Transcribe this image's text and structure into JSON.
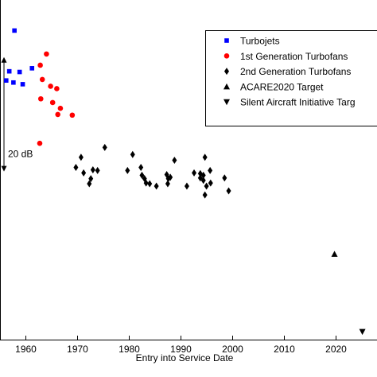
{
  "chart_data": {
    "type": "scatter",
    "title": "",
    "xlabel": "Entry into Service Date",
    "ylabel": "",
    "xlim": [
      1955,
      2027
    ],
    "ylim": [
      0,
      100
    ],
    "grid": false,
    "legend_position": "top-right",
    "xticks": [
      1960,
      1970,
      1980,
      1990,
      2000,
      2010,
      2020
    ],
    "xtick_labels": [
      "1960",
      "1970",
      "1980",
      "1990",
      "2000",
      "2010",
      "2020"
    ],
    "annotation": {
      "label": "20 dB",
      "from_y": 83.2,
      "to_y": 49.5
    },
    "series": [
      {
        "name": "Turbojets",
        "marker": "square",
        "color": "#0000ff",
        "points": [
          [
            1957.8,
            91.0
          ],
          [
            1956.2,
            76.3
          ],
          [
            1956.8,
            79.0
          ],
          [
            1957.6,
            75.7
          ],
          [
            1958.8,
            78.8
          ],
          [
            1959.4,
            75.2
          ],
          [
            1961.2,
            79.9
          ]
        ]
      },
      {
        "name": "1st Generation Turbofans",
        "marker": "circle",
        "color": "#ff0000",
        "points": [
          [
            1962.8,
            80.8
          ],
          [
            1964.0,
            84.1
          ],
          [
            1963.2,
            76.6
          ],
          [
            1964.8,
            74.6
          ],
          [
            1966.0,
            73.9
          ],
          [
            1962.9,
            70.9
          ],
          [
            1965.2,
            69.8
          ],
          [
            1966.7,
            68.1
          ],
          [
            1966.2,
            66.3
          ],
          [
            1969.0,
            66.1
          ],
          [
            1962.7,
            57.8
          ]
        ]
      },
      {
        "name": "2nd Generation Turbofans",
        "marker": "diamond",
        "color": "#000000",
        "points": [
          [
            1970.7,
            53.7
          ],
          [
            1975.3,
            56.6
          ],
          [
            1969.7,
            50.7
          ],
          [
            1971.2,
            49.1
          ],
          [
            1973.0,
            50.0
          ],
          [
            1973.9,
            49.8
          ],
          [
            1972.6,
            47.4
          ],
          [
            1972.3,
            45.9
          ],
          [
            1980.7,
            54.5
          ],
          [
            1979.7,
            49.8
          ],
          [
            1982.3,
            50.7
          ],
          [
            1982.5,
            48.4
          ],
          [
            1983.0,
            47.4
          ],
          [
            1983.3,
            46.1
          ],
          [
            1984.0,
            45.9
          ],
          [
            1985.3,
            45.2
          ],
          [
            1988.8,
            52.8
          ],
          [
            1987.3,
            48.6
          ],
          [
            1987.6,
            47.4
          ],
          [
            1988.0,
            47.8
          ],
          [
            1987.5,
            45.9
          ],
          [
            1994.7,
            53.7
          ],
          [
            1992.6,
            49.1
          ],
          [
            1993.8,
            48.9
          ],
          [
            1994.4,
            48.4
          ],
          [
            1995.7,
            49.8
          ],
          [
            1993.8,
            47.6
          ],
          [
            1994.4,
            46.9
          ],
          [
            1995.8,
            46.1
          ],
          [
            1991.2,
            45.2
          ],
          [
            1995.0,
            45.2
          ],
          [
            1998.5,
            47.6
          ],
          [
            1999.3,
            43.8
          ],
          [
            1994.7,
            42.6
          ]
        ]
      },
      {
        "name": "ACARE2020 Target",
        "marker": "triangle-up",
        "color": "#000000",
        "points": [
          [
            2019.8,
            25.2
          ]
        ]
      },
      {
        "name": "Silent Aircraft Initiative Targ",
        "marker": "triangle-down",
        "color": "#000000",
        "points": [
          [
            2025.2,
            2.3
          ]
        ]
      }
    ]
  }
}
